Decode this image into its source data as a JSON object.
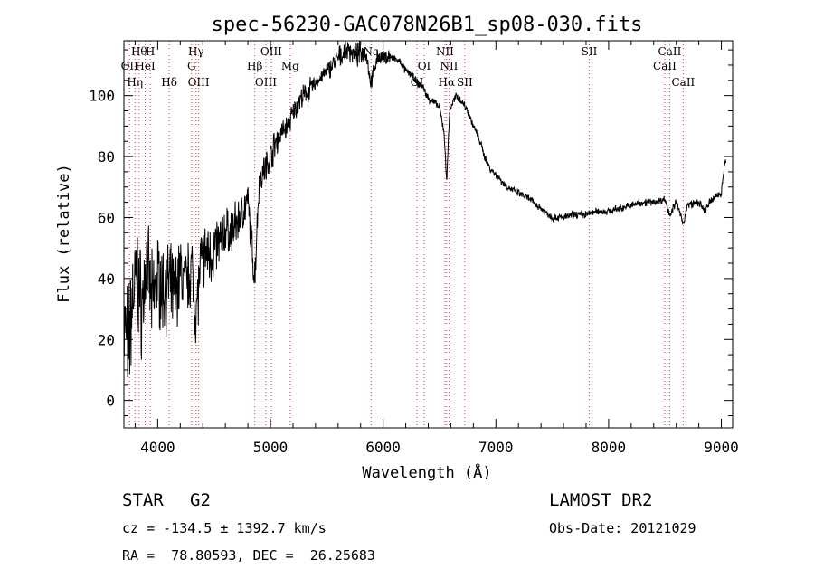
{
  "chart_data": {
    "type": "line",
    "title": "spec-56230-GAC078N26B1_sp08-030.fits",
    "xlabel": "Wavelength (Å)",
    "ylabel": "Flux (relative)",
    "xlim": [
      3700,
      9100
    ],
    "ylim": [
      -9,
      118
    ],
    "xticks": [
      4000,
      5000,
      6000,
      7000,
      8000,
      9000
    ],
    "yticks": [
      0,
      20,
      40,
      60,
      80,
      100
    ],
    "grid": false,
    "series": [
      {
        "x": [
          3700,
          3740,
          3780,
          3820,
          3860,
          3900,
          3950,
          4000,
          4050,
          4100,
          4150,
          4200,
          4250,
          4300,
          4340,
          4380,
          4420,
          4480,
          4550,
          4600,
          4650,
          4700,
          4750,
          4800,
          4860,
          4900,
          4950,
          5000,
          5050,
          5100,
          5150,
          5200,
          5250,
          5300,
          5350,
          5400,
          5450,
          5500,
          5550,
          5600,
          5650,
          5700,
          5750,
          5800,
          5850,
          5890,
          5950,
          6000,
          6050,
          6100,
          6150,
          6200,
          6250,
          6300,
          6350,
          6400,
          6450,
          6500,
          6540,
          6563,
          6590,
          6620,
          6650,
          6700,
          6750,
          6800,
          6850,
          6900,
          6950,
          7000,
          7050,
          7100,
          7150,
          7200,
          7300,
          7400,
          7500,
          7600,
          7700,
          7800,
          7900,
          8000,
          8100,
          8200,
          8300,
          8400,
          8500,
          8542,
          8600,
          8662,
          8700,
          8800,
          8850,
          8900,
          8950,
          9000,
          9030
        ],
        "y": [
          25,
          18,
          35,
          40,
          30,
          45,
          32,
          40,
          36,
          38,
          34,
          42,
          38,
          44,
          28,
          44,
          48,
          48,
          52,
          56,
          55,
          58,
          62,
          65,
          40,
          72,
          76,
          80,
          85,
          88,
          90,
          94,
          98,
          100,
          102,
          104,
          106,
          108,
          110,
          112,
          114,
          115,
          113,
          114,
          114,
          104,
          113,
          112,
          113,
          112,
          111,
          108,
          107,
          104,
          103,
          99,
          98,
          96,
          88,
          72,
          95,
          98,
          100,
          98,
          95,
          90,
          86,
          80,
          76,
          74,
          72,
          70,
          69,
          68,
          66,
          63,
          60,
          60,
          61,
          61,
          62,
          62,
          63,
          64,
          65,
          65,
          66,
          61,
          65,
          58,
          64,
          65,
          62,
          65,
          67,
          68,
          78
        ],
        "noise_amplitude": [
          14,
          16,
          14,
          14,
          13,
          12,
          12,
          12,
          11,
          11,
          10,
          10,
          9,
          9,
          9,
          9,
          8,
          8,
          7,
          6,
          6,
          6,
          5,
          5,
          5,
          4,
          4,
          4,
          4,
          3,
          3,
          3,
          3,
          3,
          3,
          2,
          2,
          2,
          3,
          3,
          3,
          3,
          3,
          3,
          2,
          2,
          2,
          2,
          2,
          1,
          1,
          1,
          1,
          1,
          1,
          1,
          1,
          1,
          1,
          1,
          1,
          1,
          1,
          1,
          1,
          1,
          1,
          1,
          1,
          1,
          1,
          1,
          1,
          1,
          1,
          1,
          1,
          1,
          1,
          1,
          1,
          1,
          1,
          1,
          1,
          1,
          1,
          1,
          1,
          1,
          1,
          1,
          1,
          1,
          1,
          1,
          1
        ]
      }
    ],
    "spectral_lines": [
      {
        "wavelength": 3750,
        "label": "OII",
        "row": 2
      },
      {
        "wavelength": 3798,
        "label": "Hη",
        "row": 3
      },
      {
        "wavelength": 3835,
        "label": "Hθ",
        "row": 1
      },
      {
        "wavelength": 3889,
        "label": "HeI",
        "row": 2
      },
      {
        "wavelength": 3934,
        "label": "H",
        "row": 1
      },
      {
        "wavelength": 4102,
        "label": "Hδ",
        "row": 3
      },
      {
        "wavelength": 4300,
        "label": "G",
        "row": 2
      },
      {
        "wavelength": 4340,
        "label": "Hγ",
        "row": 1
      },
      {
        "wavelength": 4363,
        "label": "OIII",
        "row": 3
      },
      {
        "wavelength": 4861,
        "label": "Hβ",
        "row": 2
      },
      {
        "wavelength": 4959,
        "label": "OIII",
        "row": 3
      },
      {
        "wavelength": 5007,
        "label": "OIII",
        "row": 1
      },
      {
        "wavelength": 5175,
        "label": "Mg",
        "row": 2
      },
      {
        "wavelength": 5893,
        "label": "Na",
        "row": 1
      },
      {
        "wavelength": 6300,
        "label": "OI",
        "row": 3
      },
      {
        "wavelength": 6364,
        "label": "OI",
        "row": 2
      },
      {
        "wavelength": 6548,
        "label": "NII",
        "row": 1
      },
      {
        "wavelength": 6563,
        "label": "Hα",
        "row": 3
      },
      {
        "wavelength": 6584,
        "label": "NII",
        "row": 2
      },
      {
        "wavelength": 6724,
        "label": "SII",
        "row": 3
      },
      {
        "wavelength": 7828,
        "label": "SII",
        "row": 1
      },
      {
        "wavelength": 8498,
        "label": "CaII",
        "row": 2
      },
      {
        "wavelength": 8542,
        "label": "CaII",
        "row": 1
      },
      {
        "wavelength": 8662,
        "label": "CaII",
        "row": 3
      }
    ]
  },
  "info": {
    "object_class": "STAR",
    "subclass": "G2",
    "survey": "LAMOST DR2",
    "redshift": "cz = -134.5 ± 1392.7 km/s",
    "obs_date": "Obs-Date: 20121029",
    "coords": "RA =  78.80593, DEC =  26.25683"
  },
  "colors": {
    "axes": "#000000",
    "spectrum": "#000000",
    "line_markers": "#e03c3c"
  }
}
